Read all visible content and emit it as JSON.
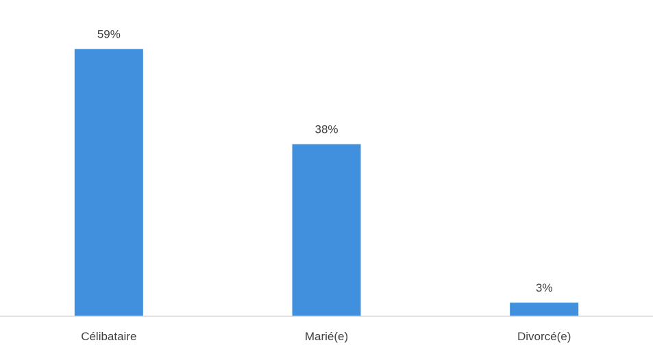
{
  "chart_data": {
    "type": "bar",
    "title": "",
    "xlabel": "",
    "ylabel": "",
    "categories": [
      "Célibataire",
      "Marié(e)",
      "Divorcé(e)"
    ],
    "values": [
      59,
      38,
      3
    ],
    "value_labels": [
      "59%",
      "38%",
      "3%"
    ],
    "unit": "%",
    "ylim": [
      0,
      65
    ],
    "grid": false,
    "legend": "none",
    "bar_color": "#4190DD",
    "axis_color": "#D9D9D9",
    "text_color": "#404040"
  }
}
